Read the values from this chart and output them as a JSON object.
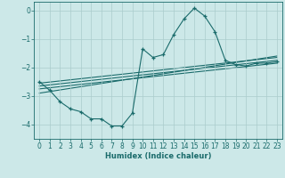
{
  "xlabel": "Humidex (Indice chaleur)",
  "bg_color": "#cce8e8",
  "line_color": "#1a6b6b",
  "grid_color": "#aacccc",
  "xlim": [
    -0.5,
    23.5
  ],
  "ylim": [
    -4.5,
    0.3
  ],
  "xticks": [
    0,
    1,
    2,
    3,
    4,
    5,
    6,
    7,
    8,
    9,
    10,
    11,
    12,
    13,
    14,
    15,
    16,
    17,
    18,
    19,
    20,
    21,
    22,
    23
  ],
  "yticks": [
    0,
    -1,
    -2,
    -3,
    -4
  ],
  "main_x": [
    0,
    1,
    2,
    3,
    4,
    5,
    6,
    7,
    8,
    9,
    10,
    11,
    12,
    13,
    14,
    15,
    16,
    17,
    18,
    19,
    20,
    21,
    22,
    23
  ],
  "main_y": [
    -2.5,
    -2.8,
    -3.2,
    -3.45,
    -3.55,
    -3.8,
    -3.8,
    -4.05,
    -4.05,
    -3.6,
    -1.35,
    -1.65,
    -1.55,
    -0.85,
    -0.3,
    0.08,
    -0.2,
    -0.75,
    -1.75,
    -1.9,
    -1.95,
    -1.85,
    -1.85,
    -1.8
  ],
  "reg_lines": [
    {
      "x": [
        0,
        23
      ],
      "y": [
        -2.55,
        -1.65
      ]
    },
    {
      "x": [
        0,
        23
      ],
      "y": [
        -2.65,
        -1.75
      ]
    },
    {
      "x": [
        0,
        23
      ],
      "y": [
        -2.75,
        -1.85
      ]
    },
    {
      "x": [
        0,
        23
      ],
      "y": [
        -2.9,
        -1.6
      ]
    }
  ]
}
